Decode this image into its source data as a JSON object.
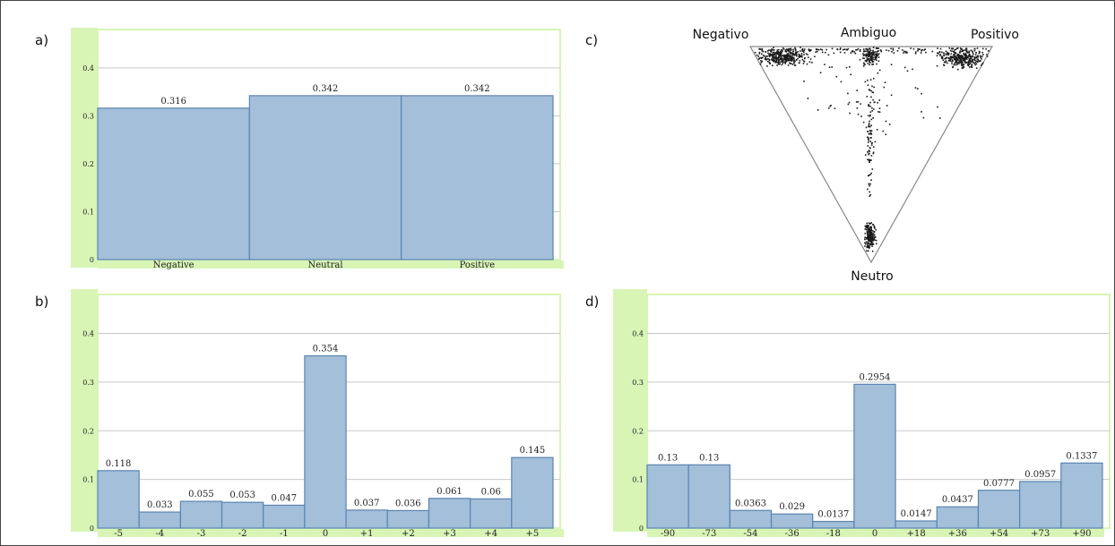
{
  "colors": {
    "bar_fill": "#a3bfd9",
    "bar_stroke": "#5b84b1",
    "grid": "#c9c9c9",
    "axis_band": "#d8f5b6",
    "point": "#1a1a1a"
  },
  "chart_data": [
    {
      "panel": "a)",
      "type": "bar",
      "categories": [
        "Negative",
        "Neutral",
        "Positive"
      ],
      "values": [
        0.316,
        0.342,
        0.342
      ],
      "value_labels": [
        "0.316",
        "0.342",
        "0.342"
      ],
      "widths": [
        1,
        1,
        1
      ],
      "ylim": [
        0,
        0.48
      ],
      "yticks": [
        0,
        0.1,
        0.2,
        0.3,
        0.4
      ],
      "ytick_labels": [
        "0",
        "0.1",
        "0.2",
        "0.3",
        "0.4"
      ],
      "grid": true
    },
    {
      "panel": "b)",
      "type": "bar",
      "categories": [
        "-5",
        "-4",
        "-3",
        "-2",
        "-1",
        "0",
        "+1",
        "+2",
        "+3",
        "+4",
        "+5"
      ],
      "values": [
        0.118,
        0.033,
        0.055,
        0.053,
        0.047,
        0.354,
        0.037,
        0.036,
        0.061,
        0.06,
        0.145
      ],
      "value_labels": [
        "0.118",
        "0.033",
        "0.055",
        "0.053",
        "0.047",
        "0.354",
        "0.037",
        "0.036",
        "0.061",
        "0.06",
        "0.145"
      ],
      "widths": [
        1,
        1,
        1,
        1,
        1,
        1,
        1,
        1,
        1,
        1,
        1
      ],
      "ylim": [
        0,
        0.48
      ],
      "yticks": [
        0,
        0.1,
        0.2,
        0.3,
        0.4
      ],
      "ytick_labels": [
        "0",
        "0.1",
        "0.2",
        "0.3",
        "0.4"
      ],
      "grid": true
    },
    {
      "panel": "c)",
      "type": "scatter",
      "subtype": "ternary",
      "vertices": {
        "top_left": "Negativo",
        "top_middle": "Ambiguo",
        "top_right": "Positivo",
        "bottom": "Neutro"
      },
      "clusters": [
        {
          "region": "Negativo",
          "weight": 0.3
        },
        {
          "region": "Ambiguo",
          "weight": 0.12
        },
        {
          "region": "Positivo",
          "weight": 0.26
        },
        {
          "region": "Neutro",
          "weight": 0.18
        },
        {
          "region": "Ambiguo-Neutro axis",
          "weight": 0.08
        },
        {
          "region": "scattered",
          "weight": 0.06
        }
      ]
    },
    {
      "panel": "d)",
      "type": "bar",
      "categories": [
        "-90",
        "-73",
        "-54",
        "-36",
        "-18",
        "0",
        "+18",
        "+36",
        "+54",
        "+73",
        "+90"
      ],
      "values": [
        0.13,
        0.13,
        0.0363,
        0.029,
        0.0137,
        0.2954,
        0.0147,
        0.0437,
        0.0777,
        0.0957,
        0.1337
      ],
      "value_labels": [
        "0.13",
        "0.13",
        "0.0363",
        "0.029",
        "0.0137",
        "0.2954",
        "0.0147",
        "0.0437",
        "0.0777",
        "0.0957",
        "0.1337"
      ],
      "widths": [
        1,
        1,
        1,
        1,
        1,
        1,
        1,
        1,
        1,
        1,
        1
      ],
      "ylim": [
        0,
        0.48
      ],
      "yticks": [
        0,
        0.1,
        0.2,
        0.3,
        0.4
      ],
      "ytick_labels": [
        "0",
        "0.1",
        "0.2",
        "0.3",
        "0.4"
      ],
      "grid": true
    }
  ]
}
